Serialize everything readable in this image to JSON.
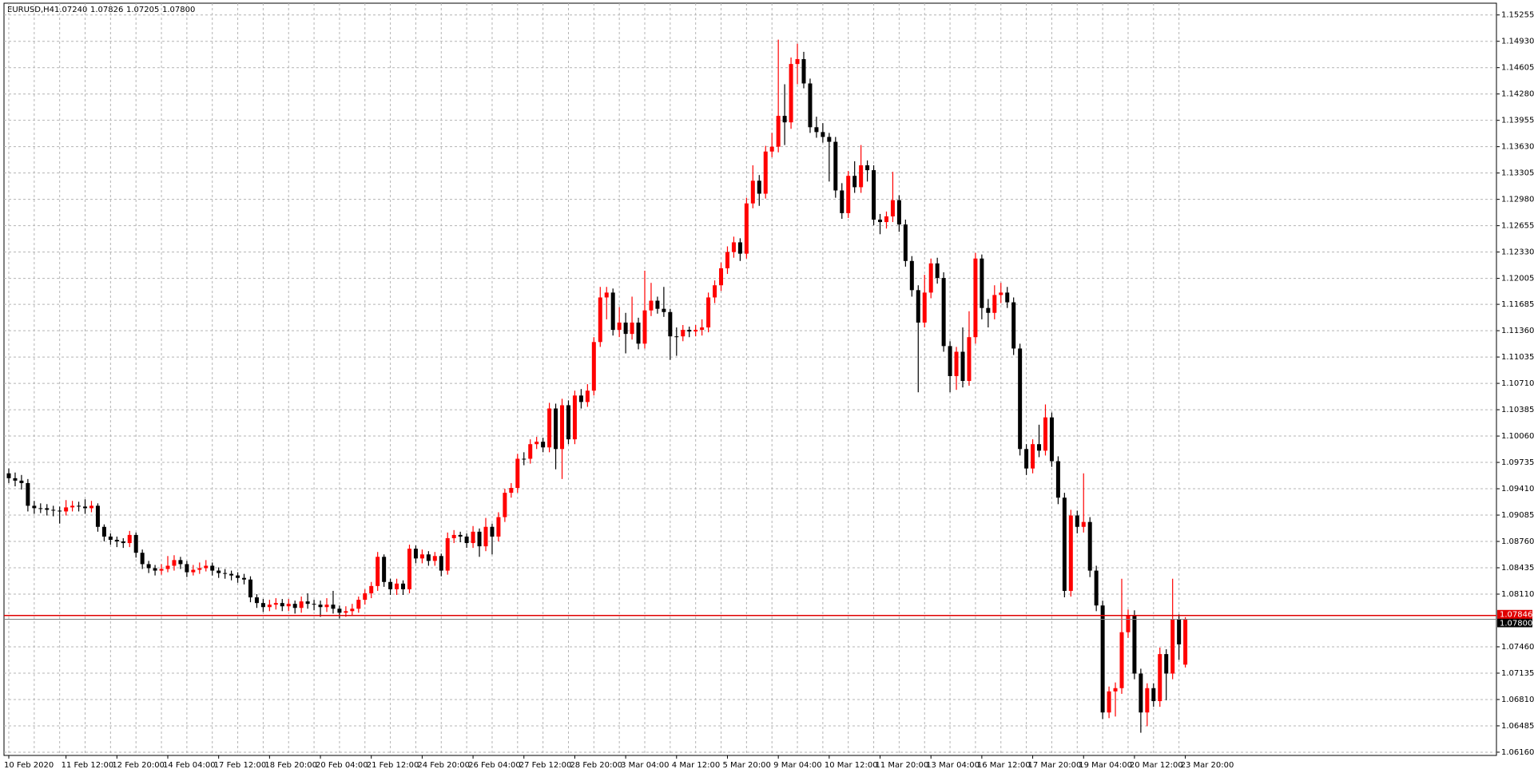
{
  "chart_data": {
    "type": "candlestick",
    "header": {
      "symbol": "EURUSD,H4",
      "ohlc": [
        {
          "value": 1.0724,
          "label": "1.07240"
        },
        {
          "value": 1.07826,
          "label": "1.07826"
        },
        {
          "value": 1.07205,
          "label": "1.07205"
        },
        {
          "value": 1.078,
          "label": "1.07800"
        }
      ]
    },
    "bull_color": "#ff0000",
    "bear_color": "#000000",
    "grid": true,
    "ylim": [
      1.0612,
      1.154
    ],
    "yticks": [
      1.15255,
      {
        "value": 1.1493,
        "label": "1.14930"
      },
      1.14605,
      {
        "value": 1.1428,
        "label": "1.14280"
      },
      1.13955,
      {
        "value": 1.1363,
        "label": "1.13630"
      },
      1.13305,
      {
        "value": 1.1298,
        "label": "1.12980"
      },
      1.12655,
      {
        "value": 1.1233,
        "label": "1.12330"
      },
      1.12005,
      1.11685,
      {
        "value": 1.1136,
        "label": "1.11360"
      },
      1.11035,
      {
        "value": 1.1071,
        "label": "1.10710"
      },
      1.10385,
      {
        "value": 1.1006,
        "label": "1.10060"
      },
      1.09735,
      {
        "value": 1.0941,
        "label": "1.09410"
      },
      1.09085,
      {
        "value": 1.0876,
        "label": "1.08760"
      },
      1.08435,
      {
        "value": 1.0811,
        "label": "1.08110"
      },
      {
        "value": 1.0746,
        "label": "1.07460"
      },
      1.07135,
      {
        "value": 1.0681,
        "label": "1.06810"
      },
      1.06485,
      {
        "value": 1.0616,
        "label": "1.06160"
      }
    ],
    "ask": {
      "value": 1.07846,
      "label": "1.07846"
    },
    "bid": {
      "value": 1.078,
      "label": "1.07800"
    },
    "categories": [
      "10 Feb 2020",
      null,
      null,
      null,
      null,
      null,
      null,
      null,
      null,
      "11 Feb 12:00",
      null,
      null,
      null,
      null,
      null,
      null,
      null,
      "12 Feb 20:00",
      null,
      null,
      null,
      null,
      null,
      null,
      null,
      "14 Feb 04:00",
      null,
      null,
      null,
      null,
      null,
      null,
      null,
      "17 Feb 12:00",
      null,
      null,
      null,
      null,
      null,
      null,
      null,
      "18 Feb 20:00",
      null,
      null,
      null,
      null,
      null,
      null,
      null,
      "20 Feb 04:00",
      null,
      null,
      null,
      null,
      null,
      null,
      null,
      "21 Feb 12:00",
      null,
      null,
      null,
      null,
      null,
      null,
      null,
      "24 Feb 20:00",
      null,
      null,
      null,
      null,
      null,
      null,
      null,
      "26 Feb 04:00",
      null,
      null,
      null,
      null,
      null,
      null,
      null,
      "27 Feb 12:00",
      null,
      null,
      null,
      null,
      null,
      null,
      null,
      "28 Feb 20:00",
      null,
      null,
      null,
      null,
      null,
      null,
      null,
      "3 Mar 04:00",
      null,
      null,
      null,
      null,
      null,
      null,
      null,
      "4 Mar 12:00",
      null,
      null,
      null,
      null,
      null,
      null,
      null,
      "5 Mar 20:00",
      null,
      null,
      null,
      null,
      null,
      null,
      null,
      "9 Mar 04:00",
      null,
      null,
      null,
      null,
      null,
      null,
      null,
      "10 Mar 12:00",
      null,
      null,
      null,
      null,
      null,
      null,
      null,
      "11 Mar 20:00",
      null,
      null,
      null,
      null,
      null,
      null,
      null,
      "13 Mar 04:00",
      null,
      null,
      null,
      null,
      null,
      null,
      null,
      "16 Mar 12:00",
      null,
      null,
      null,
      null,
      null,
      null,
      null,
      "17 Mar 20:00",
      null,
      null,
      null,
      null,
      null,
      null,
      null,
      "19 Mar 04:00",
      null,
      null,
      null,
      null,
      null,
      null,
      null,
      "20 Mar 12:00",
      null,
      null,
      null,
      null,
      null,
      null,
      null,
      "23 Mar 20:00"
    ],
    "ohlc": [
      [
        1.096,
        1.0966,
        1.0948,
        1.0954
      ],
      [
        1.0954,
        1.0961,
        1.0944,
        1.0951
      ],
      [
        1.0951,
        1.0958,
        1.094,
        1.0948
      ],
      [
        1.0948,
        1.0953,
        1.0913,
        1.092
      ],
      [
        1.092,
        1.0926,
        1.091,
        1.0917
      ],
      [
        1.0917,
        1.0923,
        1.0911,
        1.0917
      ],
      [
        1.0917,
        1.0922,
        1.0908,
        1.0915
      ],
      [
        1.0915,
        1.092,
        1.0907,
        1.0914
      ],
      [
        1.0914,
        1.0919,
        1.0898,
        1.0913
      ],
      [
        1.0913,
        1.0927,
        1.0908,
        1.0918
      ],
      [
        1.0918,
        1.0926,
        1.0913,
        1.092
      ],
      [
        1.092,
        1.0925,
        1.0913,
        1.0919
      ],
      [
        1.0919,
        1.0928,
        1.091,
        1.0917
      ],
      [
        1.0917,
        1.0926,
        1.0912,
        1.092
      ],
      [
        1.092,
        1.0923,
        1.0888,
        1.0894
      ],
      [
        1.0894,
        1.0897,
        1.0876,
        1.0882
      ],
      [
        1.0882,
        1.0886,
        1.0872,
        1.0878
      ],
      [
        1.0878,
        1.0882,
        1.0869,
        1.0876
      ],
      [
        1.0876,
        1.088,
        1.0868,
        1.0874
      ],
      [
        1.0874,
        1.0889,
        1.0869,
        1.0884
      ],
      [
        1.0884,
        1.0887,
        1.0856,
        1.0862
      ],
      [
        1.0862,
        1.0866,
        1.0842,
        1.0848
      ],
      [
        1.0848,
        1.0852,
        1.0837,
        1.0843
      ],
      [
        1.0843,
        1.0847,
        1.0834,
        1.084
      ],
      [
        1.084,
        1.0848,
        1.0835,
        1.0842
      ],
      [
        1.0842,
        1.0858,
        1.0838,
        1.0846
      ],
      [
        1.0846,
        1.0859,
        1.084,
        1.0853
      ],
      [
        1.0853,
        1.0857,
        1.0842,
        1.0848
      ],
      [
        1.0848,
        1.0852,
        1.0832,
        1.0838
      ],
      [
        1.0838,
        1.0847,
        1.0834,
        1.0841
      ],
      [
        1.0841,
        1.085,
        1.0836,
        1.0843
      ],
      [
        1.0843,
        1.0853,
        1.0839,
        1.0846
      ],
      [
        1.0846,
        1.085,
        1.0834,
        1.084
      ],
      [
        1.084,
        1.0844,
        1.0831,
        1.0837
      ],
      [
        1.0837,
        1.0842,
        1.083,
        1.0836
      ],
      [
        1.0836,
        1.084,
        1.0828,
        1.0834
      ],
      [
        1.0834,
        1.0838,
        1.0825,
        1.0831
      ],
      [
        1.0831,
        1.0836,
        1.0823,
        1.0829
      ],
      [
        1.0829,
        1.0833,
        1.0801,
        1.0807
      ],
      [
        1.0807,
        1.0811,
        1.0794,
        1.08
      ],
      [
        1.08,
        1.0805,
        1.0789,
        1.0795
      ],
      [
        1.0795,
        1.0804,
        1.079,
        1.0798
      ],
      [
        1.0798,
        1.0806,
        1.0792,
        1.08
      ],
      [
        1.08,
        1.0805,
        1.079,
        1.0796
      ],
      [
        1.0796,
        1.0805,
        1.079,
        1.0799
      ],
      [
        1.0799,
        1.0803,
        1.0787,
        1.0794
      ],
      [
        1.0794,
        1.0808,
        1.0788,
        1.0802
      ],
      [
        1.0802,
        1.0812,
        1.0793,
        1.0799
      ],
      [
        1.0799,
        1.0804,
        1.0791,
        1.0798
      ],
      [
        1.0798,
        1.0803,
        1.0783,
        1.0795
      ],
      [
        1.0795,
        1.0806,
        1.0789,
        1.0798
      ],
      [
        1.0798,
        1.0815,
        1.0787,
        1.0793
      ],
      [
        1.0793,
        1.0797,
        1.0781,
        1.0788
      ],
      [
        1.0788,
        1.0796,
        1.0783,
        1.079
      ],
      [
        1.079,
        1.0799,
        1.0785,
        1.0793
      ],
      [
        1.0793,
        1.0808,
        1.0788,
        1.0804
      ],
      [
        1.0804,
        1.0817,
        1.0798,
        1.0812
      ],
      [
        1.0812,
        1.0826,
        1.0806,
        1.0821
      ],
      [
        1.0821,
        1.0863,
        1.0815,
        1.0857
      ],
      [
        1.0857,
        1.086,
        1.082,
        1.0826
      ],
      [
        1.0826,
        1.083,
        1.081,
        1.0817
      ],
      [
        1.0817,
        1.083,
        1.081,
        1.0824
      ],
      [
        1.0824,
        1.0828,
        1.081,
        1.0817
      ],
      [
        1.0817,
        1.0872,
        1.0812,
        1.0867
      ],
      [
        1.0867,
        1.0871,
        1.0849,
        1.0855
      ],
      [
        1.0855,
        1.0866,
        1.0849,
        1.086
      ],
      [
        1.086,
        1.0864,
        1.0846,
        1.0852
      ],
      [
        1.0852,
        1.0863,
        1.0846,
        1.0858
      ],
      [
        1.0858,
        1.0861,
        1.0833,
        1.084
      ],
      [
        1.084,
        1.0887,
        1.0835,
        1.088
      ],
      [
        1.088,
        1.089,
        1.0874,
        1.0884
      ],
      [
        1.0884,
        1.0888,
        1.0875,
        1.0882
      ],
      [
        1.0882,
        1.0886,
        1.0868,
        1.0874
      ],
      [
        1.0874,
        1.0895,
        1.0868,
        1.0888
      ],
      [
        1.0888,
        1.0892,
        1.0857,
        1.087
      ],
      [
        1.087,
        1.0905,
        1.0864,
        1.0894
      ],
      [
        1.0894,
        1.0898,
        1.086,
        1.0882
      ],
      [
        1.0882,
        1.0912,
        1.0876,
        1.0906
      ],
      [
        1.0906,
        1.0941,
        1.09,
        1.0936
      ],
      [
        1.0936,
        1.0948,
        1.093,
        1.0942
      ],
      [
        1.0942,
        1.0984,
        1.0936,
        1.0978
      ],
      [
        1.0978,
        1.0986,
        1.097,
        1.0978
      ],
      [
        1.0978,
        1.1002,
        1.0972,
        1.0996
      ],
      [
        1.0996,
        1.1005,
        1.099,
        1.0999
      ],
      [
        1.0999,
        1.1004,
        1.0986,
        1.0992
      ],
      [
        1.0992,
        1.1047,
        1.0986,
        1.104
      ],
      [
        1.104,
        1.1046,
        1.0965,
        1.099
      ],
      [
        1.099,
        1.1052,
        1.0953,
        1.1044
      ],
      [
        1.1044,
        1.105,
        1.0996,
        1.1002
      ],
      [
        1.1002,
        1.1062,
        1.0996,
        1.1056
      ],
      [
        1.1056,
        1.1064,
        1.104,
        1.1048
      ],
      [
        1.1048,
        1.107,
        1.1042,
        1.1062
      ],
      [
        1.1062,
        1.1128,
        1.1056,
        1.1122
      ],
      [
        1.1122,
        1.119,
        1.1116,
        1.1177
      ],
      [
        1.1177,
        1.119,
        1.115,
        1.1183
      ],
      [
        1.1183,
        1.1188,
        1.113,
        1.1137
      ],
      [
        1.1137,
        1.1165,
        1.1128,
        1.1146
      ],
      [
        1.1146,
        1.1158,
        1.1108,
        1.1132
      ],
      [
        1.1132,
        1.1178,
        1.1125,
        1.1146
      ],
      [
        1.1146,
        1.1152,
        1.1113,
        1.112
      ],
      [
        1.112,
        1.121,
        1.1114,
        1.1161
      ],
      [
        1.1161,
        1.1195,
        1.1154,
        1.1173
      ],
      [
        1.1173,
        1.1178,
        1.1157,
        1.1163
      ],
      [
        1.1163,
        1.119,
        1.1153,
        1.1159
      ],
      [
        1.1159,
        1.1163,
        1.11,
        1.1129
      ],
      [
        1.1129,
        1.114,
        1.1105,
        1.1129
      ],
      [
        1.1129,
        1.1143,
        1.1123,
        1.1137
      ],
      [
        1.1137,
        1.1141,
        1.1128,
        1.1135
      ],
      [
        1.1135,
        1.1143,
        1.1129,
        1.1137
      ],
      [
        1.1137,
        1.115,
        1.113,
        1.114
      ],
      [
        1.114,
        1.1183,
        1.1134,
        1.1177
      ],
      [
        1.1177,
        1.1198,
        1.117,
        1.1192
      ],
      [
        1.1192,
        1.122,
        1.1185,
        1.1213
      ],
      [
        1.1213,
        1.124,
        1.1206,
        1.1233
      ],
      [
        1.1233,
        1.1252,
        1.1226,
        1.1245
      ],
      [
        1.1245,
        1.125,
        1.1222,
        1.1231
      ],
      [
        1.1231,
        1.13,
        1.1225,
        1.1293
      ],
      [
        1.1293,
        1.134,
        1.1287,
        1.1321
      ],
      [
        1.1321,
        1.1328,
        1.129,
        1.1305
      ],
      [
        1.1305,
        1.1364,
        1.1299,
        1.1357
      ],
      [
        1.1357,
        1.138,
        1.135,
        1.1363
      ],
      [
        1.1363,
        1.1495,
        1.1356,
        1.1401
      ],
      [
        1.1401,
        1.144,
        1.1365,
        1.1393
      ],
      [
        1.1393,
        1.1473,
        1.1385,
        1.1465
      ],
      [
        1.1465,
        1.149,
        1.144,
        1.1471
      ],
      [
        1.1471,
        1.148,
        1.1435,
        1.1441
      ],
      [
        1.1441,
        1.1447,
        1.138,
        1.1387
      ],
      [
        1.1387,
        1.14,
        1.1374,
        1.1381
      ],
      [
        1.1381,
        1.1392,
        1.1368,
        1.1375
      ],
      [
        1.1375,
        1.138,
        1.132,
        1.1369
      ],
      [
        1.1369,
        1.1375,
        1.13,
        1.1309
      ],
      [
        1.1309,
        1.1318,
        1.1274,
        1.1281
      ],
      [
        1.1281,
        1.1333,
        1.1275,
        1.1327
      ],
      [
        1.1327,
        1.1345,
        1.1306,
        1.1313
      ],
      [
        1.1313,
        1.1365,
        1.1306,
        1.134
      ],
      [
        1.134,
        1.1346,
        1.132,
        1.1334
      ],
      [
        1.1334,
        1.134,
        1.1266,
        1.1273
      ],
      [
        1.1273,
        1.128,
        1.1255,
        1.127
      ],
      [
        1.127,
        1.1283,
        1.1262,
        1.1277
      ],
      [
        1.1277,
        1.1332,
        1.127,
        1.1297
      ],
      [
        1.1297,
        1.1303,
        1.1258,
        1.1267
      ],
      [
        1.1267,
        1.1273,
        1.1215,
        1.1222
      ],
      [
        1.1222,
        1.1228,
        1.1178,
        1.1186
      ],
      [
        1.1186,
        1.1192,
        1.106,
        1.1146
      ],
      [
        1.1146,
        1.1205,
        1.114,
        1.1183
      ],
      [
        1.1183,
        1.1225,
        1.1176,
        1.1219
      ],
      [
        1.1219,
        1.1226,
        1.1194,
        1.1201
      ],
      [
        1.1201,
        1.1208,
        1.111,
        1.1117
      ],
      [
        1.1117,
        1.1123,
        1.106,
        1.108
      ],
      [
        1.108,
        1.1116,
        1.1063,
        1.111
      ],
      [
        1.111,
        1.114,
        1.1066,
        1.1074
      ],
      [
        1.1074,
        1.116,
        1.1068,
        1.1128
      ],
      [
        1.1128,
        1.1232,
        1.112,
        1.1225
      ],
      [
        1.1225,
        1.123,
        1.115,
        1.1164
      ],
      [
        1.1164,
        1.1175,
        1.114,
        1.1158
      ],
      [
        1.1158,
        1.1192,
        1.115,
        1.118
      ],
      [
        1.118,
        1.1195,
        1.117,
        1.1183
      ],
      [
        1.1183,
        1.119,
        1.1164,
        1.1171
      ],
      [
        1.1171,
        1.1177,
        1.1106,
        1.1114
      ],
      [
        1.1114,
        1.112,
        1.0982,
        1.099
      ],
      [
        1.099,
        1.0996,
        1.0958,
        1.0966
      ],
      [
        1.0966,
        1.1002,
        1.096,
        1.0996
      ],
      [
        1.0996,
        1.102,
        1.098,
        1.0988
      ],
      [
        1.0988,
        1.1045,
        1.0982,
        1.1029
      ],
      [
        1.1029,
        1.1035,
        1.0968,
        1.0975
      ],
      [
        1.0975,
        1.0981,
        1.0922,
        1.093
      ],
      [
        1.093,
        1.0936,
        1.0807,
        1.0815
      ],
      [
        1.0815,
        1.0915,
        1.0808,
        1.0908
      ],
      [
        1.0908,
        1.0914,
        1.0886,
        1.0894
      ],
      [
        1.0894,
        1.096,
        1.0887,
        1.09
      ],
      [
        1.09,
        1.0906,
        1.0832,
        1.084
      ],
      [
        1.084,
        1.0846,
        1.079,
        1.0797
      ],
      [
        1.0797,
        1.0803,
        1.0657,
        1.0665
      ],
      [
        1.0665,
        1.0697,
        1.0658,
        1.0691
      ],
      [
        1.0691,
        1.0702,
        1.066,
        1.0695
      ],
      [
        1.0695,
        1.083,
        1.0688,
        1.0764
      ],
      [
        1.0764,
        1.0792,
        1.0757,
        1.0785
      ],
      [
        1.0785,
        1.0791,
        1.0706,
        1.0713
      ],
      [
        1.0713,
        1.0719,
        1.064,
        1.0665
      ],
      [
        1.0665,
        1.0701,
        1.0648,
        1.0695
      ],
      [
        1.0695,
        1.0701,
        1.0672,
        1.0679
      ],
      [
        1.0679,
        1.0745,
        1.0672,
        1.0737
      ],
      [
        1.0737,
        1.0743,
        1.068,
        1.0713
      ],
      [
        1.0713,
        1.083,
        1.0706,
        1.078
      ],
      [
        1.078,
        1.0786,
        1.073,
        1.0749
      ],
      [
        1.0724,
        1.07826,
        1.07205,
        1.078
      ]
    ]
  }
}
